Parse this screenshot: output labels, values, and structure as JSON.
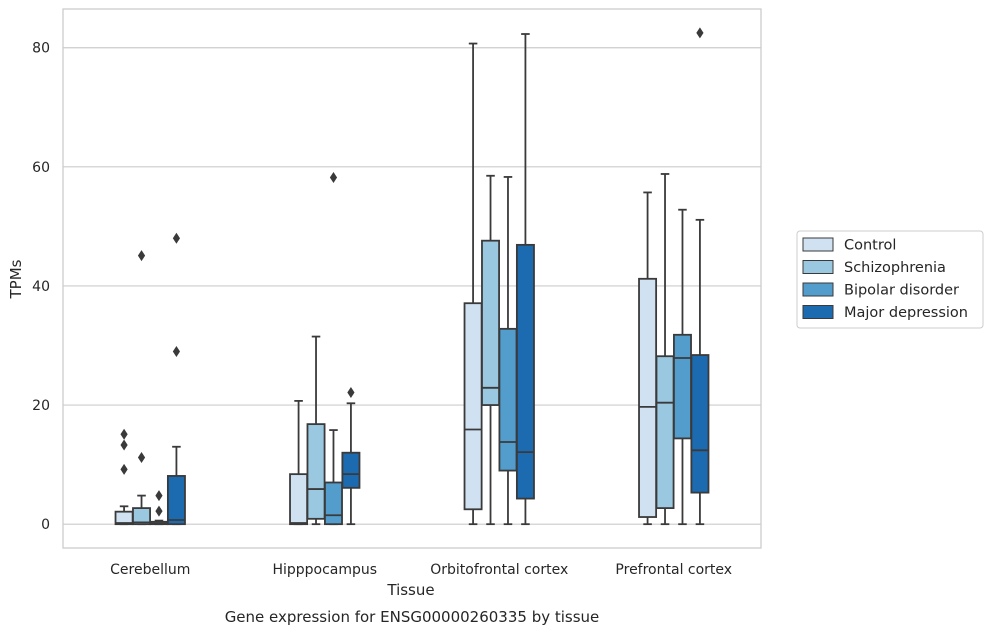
{
  "caption": "Gene expression for ENSG00000260335 by tissue",
  "chart_data": {
    "type": "box",
    "title": "",
    "xlabel": "Tissue",
    "ylabel": "TPMs",
    "ylim": [
      -4,
      86.5
    ],
    "yticks": [
      0,
      20,
      40,
      60,
      80
    ],
    "grid": "horizontal",
    "legend_position": "right",
    "categories": [
      "Cerebellum",
      "Hipppocampus",
      "Orbitofrontal cortex",
      "Prefrontal cortex"
    ],
    "series": [
      {
        "name": "Control",
        "color": "#d0e2f2",
        "boxes": [
          {
            "whisker_low": 0,
            "q1": 0,
            "median": 0.2,
            "q3": 2.1,
            "whisker_high": 3.0,
            "outliers": [
              9.2,
              13.3,
              15.1
            ]
          },
          {
            "whisker_low": 0,
            "q1": 0,
            "median": 0.2,
            "q3": 8.4,
            "whisker_high": 20.7,
            "outliers": []
          },
          {
            "whisker_low": 0,
            "q1": 2.5,
            "median": 15.9,
            "q3": 37.1,
            "whisker_high": 80.7,
            "outliers": []
          },
          {
            "whisker_low": 0,
            "q1": 1.2,
            "median": 19.7,
            "q3": 41.2,
            "whisker_high": 55.7,
            "outliers": []
          }
        ]
      },
      {
        "name": "Schizophrenia",
        "color": "#9ac8e0",
        "boxes": [
          {
            "whisker_low": 0,
            "q1": 0,
            "median": 0.3,
            "q3": 2.7,
            "whisker_high": 4.8,
            "outliers": [
              11.2,
              45.1
            ]
          },
          {
            "whisker_low": 0,
            "q1": 0.9,
            "median": 5.9,
            "q3": 16.8,
            "whisker_high": 31.5,
            "outliers": []
          },
          {
            "whisker_low": 0,
            "q1": 20.0,
            "median": 22.9,
            "q3": 47.6,
            "whisker_high": 58.5,
            "outliers": []
          },
          {
            "whisker_low": 0,
            "q1": 2.7,
            "median": 20.4,
            "q3": 28.2,
            "whisker_high": 58.8,
            "outliers": []
          }
        ]
      },
      {
        "name": "Bipolar disorder",
        "color": "#529dcc",
        "boxes": [
          {
            "whisker_low": 0,
            "q1": 0,
            "median": 0.1,
            "q3": 0.4,
            "whisker_high": 0.6,
            "outliers": [
              2.2,
              4.8
            ]
          },
          {
            "whisker_low": 0,
            "q1": 0,
            "median": 1.5,
            "q3": 7.0,
            "whisker_high": 15.8,
            "outliers": [
              58.2
            ]
          },
          {
            "whisker_low": 0,
            "q1": 9.0,
            "median": 13.8,
            "q3": 32.8,
            "whisker_high": 58.3,
            "outliers": []
          },
          {
            "whisker_low": 0,
            "q1": 14.4,
            "median": 27.9,
            "q3": 31.8,
            "whisker_high": 52.8,
            "outliers": []
          }
        ]
      },
      {
        "name": "Major depression",
        "color": "#1c6aaf",
        "boxes": [
          {
            "whisker_low": 0,
            "q1": 0,
            "median": 0.7,
            "q3": 8.1,
            "whisker_high": 13.0,
            "outliers": [
              29.0,
              48.0
            ]
          },
          {
            "whisker_low": 0,
            "q1": 6.1,
            "median": 8.4,
            "q3": 12.0,
            "whisker_high": 20.3,
            "outliers": [
              22.1
            ]
          },
          {
            "whisker_low": 0,
            "q1": 4.3,
            "median": 12.1,
            "q3": 46.9,
            "whisker_high": 82.3,
            "outliers": []
          },
          {
            "whisker_low": 0,
            "q1": 5.3,
            "median": 12.4,
            "q3": 28.4,
            "whisker_high": 51.1,
            "outliers": [
              82.5
            ]
          }
        ]
      }
    ]
  }
}
